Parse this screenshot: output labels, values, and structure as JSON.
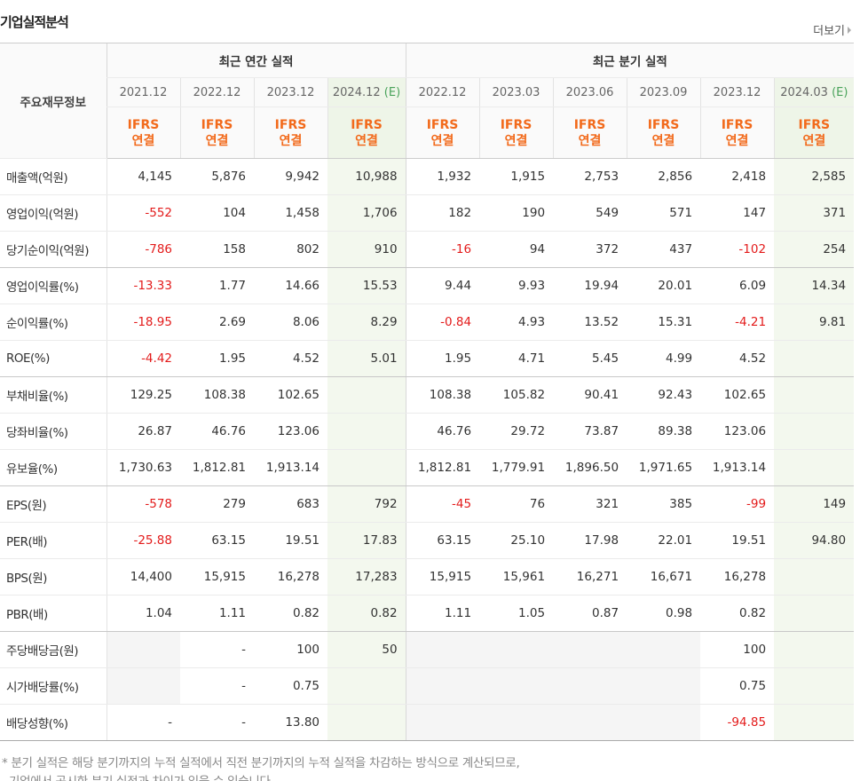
{
  "header": {
    "title": "기업실적분석",
    "more": "더보기"
  },
  "table": {
    "corner": "주요재무정보",
    "groups": [
      {
        "title": "최근 연간 실적",
        "columns": [
          {
            "date": "2021.12",
            "basis": [
              "IFRS",
              "연결"
            ]
          },
          {
            "date": "2022.12",
            "basis": [
              "IFRS",
              "연결"
            ]
          },
          {
            "date": "2023.12",
            "basis": [
              "IFRS",
              "연결"
            ]
          },
          {
            "date": "2024.12",
            "mark": "(E)",
            "basis": [
              "IFRS",
              "연결"
            ]
          }
        ]
      },
      {
        "title": "최근 분기 실적",
        "columns": [
          {
            "date": "2022.12",
            "basis": [
              "IFRS",
              "연결"
            ]
          },
          {
            "date": "2023.03",
            "basis": [
              "IFRS",
              "연결"
            ]
          },
          {
            "date": "2023.06",
            "basis": [
              "IFRS",
              "연결"
            ]
          },
          {
            "date": "2023.09",
            "basis": [
              "IFRS",
              "연결"
            ]
          },
          {
            "date": "2023.12",
            "basis": [
              "IFRS",
              "연결"
            ]
          },
          {
            "date": "2024.03",
            "mark": "(E)",
            "basis": [
              "IFRS",
              "연결"
            ]
          }
        ]
      }
    ],
    "row_groups": [
      [
        {
          "label": "매출액(억원)",
          "values": [
            "4,145",
            "5,876",
            "9,942",
            "10,988",
            "1,932",
            "1,915",
            "2,753",
            "2,856",
            "2,418",
            "2,585"
          ]
        },
        {
          "label": "영업이익(억원)",
          "values": [
            "-552",
            "104",
            "1,458",
            "1,706",
            "182",
            "190",
            "549",
            "571",
            "147",
            "371"
          ]
        },
        {
          "label": "당기순이익(억원)",
          "values": [
            "-786",
            "158",
            "802",
            "910",
            "-16",
            "94",
            "372",
            "437",
            "-102",
            "254"
          ]
        }
      ],
      [
        {
          "label": "영업이익률(%)",
          "values": [
            "-13.33",
            "1.77",
            "14.66",
            "15.53",
            "9.44",
            "9.93",
            "19.94",
            "20.01",
            "6.09",
            "14.34"
          ]
        },
        {
          "label": "순이익률(%)",
          "values": [
            "-18.95",
            "2.69",
            "8.06",
            "8.29",
            "-0.84",
            "4.93",
            "13.52",
            "15.31",
            "-4.21",
            "9.81"
          ]
        },
        {
          "label": "ROE(%)",
          "values": [
            "-4.42",
            "1.95",
            "4.52",
            "5.01",
            "1.95",
            "4.71",
            "5.45",
            "4.99",
            "4.52",
            null
          ]
        }
      ],
      [
        {
          "label": "부채비율(%)",
          "values": [
            "129.25",
            "108.38",
            "102.65",
            null,
            "108.38",
            "105.82",
            "90.41",
            "92.43",
            "102.65",
            null
          ]
        },
        {
          "label": "당좌비율(%)",
          "values": [
            "26.87",
            "46.76",
            "123.06",
            null,
            "46.76",
            "29.72",
            "73.87",
            "89.38",
            "123.06",
            null
          ]
        },
        {
          "label": "유보율(%)",
          "values": [
            "1,730.63",
            "1,812.81",
            "1,913.14",
            null,
            "1,812.81",
            "1,779.91",
            "1,896.50",
            "1,971.65",
            "1,913.14",
            null
          ]
        }
      ],
      [
        {
          "label": "EPS(원)",
          "values": [
            "-578",
            "279",
            "683",
            "792",
            "-45",
            "76",
            "321",
            "385",
            "-99",
            "149"
          ]
        },
        {
          "label": "PER(배)",
          "values": [
            "-25.88",
            "63.15",
            "19.51",
            "17.83",
            "63.15",
            "25.10",
            "17.98",
            "22.01",
            "19.51",
            "94.80"
          ]
        },
        {
          "label": "BPS(원)",
          "values": [
            "14,400",
            "15,915",
            "16,278",
            "17,283",
            "15,915",
            "15,961",
            "16,271",
            "16,671",
            "16,278",
            null
          ]
        },
        {
          "label": "PBR(배)",
          "values": [
            "1.04",
            "1.11",
            "0.82",
            "0.82",
            "1.11",
            "1.05",
            "0.87",
            "0.98",
            "0.82",
            null
          ]
        }
      ],
      [
        {
          "label": "주당배당금(원)",
          "values": [
            null,
            "-",
            "100",
            "50",
            null,
            null,
            null,
            null,
            "100",
            null
          ]
        },
        {
          "label": "시가배당률(%)",
          "values": [
            null,
            "-",
            "0.75",
            null,
            null,
            null,
            null,
            null,
            "0.75",
            null
          ]
        },
        {
          "label": "배당성향(%)",
          "values": [
            "-",
            "-",
            "13.80",
            null,
            null,
            null,
            null,
            null,
            "-94.85",
            null
          ]
        }
      ]
    ]
  },
  "notes": [
    "* 분기 실적은 해당 분기까지의 누적 실적에서 직전 분기까지의 누적 실적을 차감하는 방식으로 계산되므로,",
    "기업에서 공시한 분기 실적과 차이가 있을 수 있습니다."
  ]
}
